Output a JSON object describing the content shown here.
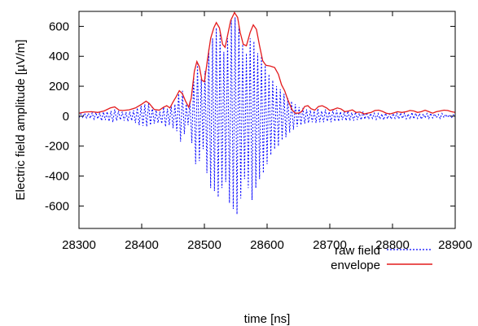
{
  "chart_data": {
    "type": "line",
    "xlabel": "time [ns]",
    "ylabel": "Electric field amplitude [µV/m]",
    "xlim": [
      28300,
      28900
    ],
    "ylim": [
      -750,
      700
    ],
    "x_ticks": [
      28300,
      28400,
      28500,
      28600,
      28700,
      28800,
      28900
    ],
    "y_ticks": [
      -600,
      -400,
      -200,
      0,
      200,
      400,
      600
    ],
    "grid": false,
    "legend_position": "bottom-right",
    "series": [
      {
        "name": "raw field",
        "style": "dotted",
        "color": "#0000ff",
        "points": [
          [
            28300,
            -10
          ],
          [
            28303,
            15
          ],
          [
            28306,
            -8
          ],
          [
            28309,
            20
          ],
          [
            28312,
            -12
          ],
          [
            28315,
            18
          ],
          [
            28318,
            -15
          ],
          [
            28321,
            22
          ],
          [
            28324,
            -20
          ],
          [
            28327,
            25
          ],
          [
            28330,
            -18
          ],
          [
            28333,
            20
          ],
          [
            28336,
            -30
          ],
          [
            28339,
            28
          ],
          [
            28342,
            -25
          ],
          [
            28345,
            30
          ],
          [
            28348,
            -35
          ],
          [
            28351,
            35
          ],
          [
            28354,
            -40
          ],
          [
            28357,
            45
          ],
          [
            28360,
            -30
          ],
          [
            28363,
            35
          ],
          [
            28366,
            -25
          ],
          [
            28369,
            30
          ],
          [
            28372,
            -30
          ],
          [
            28375,
            28
          ],
          [
            28378,
            -35
          ],
          [
            28381,
            30
          ],
          [
            28384,
            -30
          ],
          [
            28387,
            40
          ],
          [
            28390,
            -45
          ],
          [
            28393,
            55
          ],
          [
            28396,
            -60
          ],
          [
            28399,
            70
          ],
          [
            28402,
            -65
          ],
          [
            28405,
            80
          ],
          [
            28408,
            -70
          ],
          [
            28411,
            85
          ],
          [
            28414,
            -60
          ],
          [
            28417,
            60
          ],
          [
            28420,
            -50
          ],
          [
            28423,
            40
          ],
          [
            28426,
            -45
          ],
          [
            28429,
            30
          ],
          [
            28432,
            -50
          ],
          [
            28435,
            60
          ],
          [
            28438,
            -70
          ],
          [
            28441,
            50
          ],
          [
            28444,
            -60
          ],
          [
            28447,
            70
          ],
          [
            28450,
            -80
          ],
          [
            28453,
            80
          ],
          [
            28456,
            -100
          ],
          [
            28459,
            150
          ],
          [
            28462,
            -170
          ],
          [
            28465,
            170
          ],
          [
            28468,
            -120
          ],
          [
            28471,
            80
          ],
          [
            28474,
            -60
          ],
          [
            28477,
            100
          ],
          [
            28480,
            -180
          ],
          [
            28483,
            260
          ],
          [
            28486,
            -320
          ],
          [
            28489,
            350
          ],
          [
            28492,
            -300
          ],
          [
            28495,
            250
          ],
          [
            28498,
            -220
          ],
          [
            28501,
            300
          ],
          [
            28504,
            -380
          ],
          [
            28507,
            450
          ],
          [
            28510,
            -480
          ],
          [
            28513,
            520
          ],
          [
            28516,
            -500
          ],
          [
            28519,
            590
          ],
          [
            28522,
            -540
          ],
          [
            28525,
            560
          ],
          [
            28528,
            -480
          ],
          [
            28531,
            430
          ],
          [
            28534,
            -440
          ],
          [
            28537,
            520
          ],
          [
            28540,
            -580
          ],
          [
            28543,
            640
          ],
          [
            28546,
            -620
          ],
          [
            28549,
            660
          ],
          [
            28552,
            -655
          ],
          [
            28555,
            600
          ],
          [
            28558,
            -550
          ],
          [
            28561,
            480
          ],
          [
            28564,
            -420
          ],
          [
            28567,
            420
          ],
          [
            28570,
            -480
          ],
          [
            28573,
            520
          ],
          [
            28576,
            -560
          ],
          [
            28579,
            500
          ],
          [
            28582,
            -480
          ],
          [
            28585,
            420
          ],
          [
            28588,
            -420
          ],
          [
            28591,
            400
          ],
          [
            28594,
            -380
          ],
          [
            28597,
            350
          ],
          [
            28600,
            -320
          ],
          [
            28603,
            280
          ],
          [
            28606,
            -260
          ],
          [
            28609,
            240
          ],
          [
            28612,
            -220
          ],
          [
            28615,
            200
          ],
          [
            28618,
            -200
          ],
          [
            28621,
            180
          ],
          [
            28624,
            -160
          ],
          [
            28627,
            150
          ],
          [
            28630,
            -140
          ],
          [
            28633,
            120
          ],
          [
            28636,
            -110
          ],
          [
            28639,
            100
          ],
          [
            28642,
            -90
          ],
          [
            28645,
            80
          ],
          [
            28648,
            -70
          ],
          [
            28651,
            60
          ],
          [
            28654,
            -60
          ],
          [
            28657,
            55
          ],
          [
            28660,
            -50
          ],
          [
            28663,
            45
          ],
          [
            28666,
            -45
          ],
          [
            28669,
            40
          ],
          [
            28672,
            -40
          ],
          [
            28675,
            35
          ],
          [
            28678,
            -45
          ],
          [
            28681,
            50
          ],
          [
            28684,
            -40
          ],
          [
            28687,
            35
          ],
          [
            28690,
            -40
          ],
          [
            28693,
            45
          ],
          [
            28696,
            -35
          ],
          [
            28699,
            30
          ],
          [
            28702,
            -40
          ],
          [
            28705,
            45
          ],
          [
            28708,
            -35
          ],
          [
            28711,
            40
          ],
          [
            28714,
            -35
          ],
          [
            28717,
            30
          ],
          [
            28720,
            -25
          ],
          [
            28723,
            30
          ],
          [
            28726,
            -30
          ],
          [
            28729,
            35
          ],
          [
            28732,
            -30
          ],
          [
            28735,
            25
          ],
          [
            28738,
            -30
          ],
          [
            28741,
            28
          ],
          [
            28744,
            -25
          ],
          [
            28747,
            20
          ],
          [
            28750,
            -25
          ],
          [
            28753,
            30
          ],
          [
            28756,
            -20
          ],
          [
            28759,
            25
          ],
          [
            28762,
            -20
          ],
          [
            28765,
            18
          ],
          [
            28768,
            -15
          ],
          [
            28771,
            20
          ],
          [
            28774,
            -22
          ],
          [
            28777,
            18
          ],
          [
            28780,
            -20
          ],
          [
            28783,
            15
          ],
          [
            28786,
            -25
          ],
          [
            28789,
            20
          ],
          [
            28792,
            -18
          ],
          [
            28795,
            15
          ],
          [
            28798,
            -20
          ],
          [
            28801,
            18
          ],
          [
            28804,
            -15
          ],
          [
            28807,
            20
          ],
          [
            28810,
            -18
          ],
          [
            28813,
            22
          ],
          [
            28816,
            -15
          ],
          [
            28819,
            20
          ],
          [
            28822,
            -18
          ],
          [
            28825,
            15
          ],
          [
            28828,
            -20
          ],
          [
            28831,
            25
          ],
          [
            28834,
            -18
          ],
          [
            28837,
            20
          ],
          [
            28840,
            -15
          ],
          [
            28843,
            18
          ],
          [
            28846,
            -20
          ],
          [
            28849,
            15
          ],
          [
            28852,
            -12
          ],
          [
            28855,
            18
          ],
          [
            28858,
            -15
          ],
          [
            28861,
            20
          ],
          [
            28864,
            -12
          ],
          [
            28867,
            15
          ],
          [
            28870,
            -10
          ],
          [
            28873,
            12
          ],
          [
            28876,
            -15
          ],
          [
            28879,
            18
          ],
          [
            28882,
            -10
          ],
          [
            28885,
            12
          ],
          [
            28888,
            -8
          ],
          [
            28891,
            10
          ],
          [
            28894,
            -12
          ],
          [
            28897,
            10
          ],
          [
            28900,
            -5
          ]
        ]
      },
      {
        "name": "envelope",
        "style": "solid",
        "color": "#e31a1c",
        "points": [
          [
            28300,
            20
          ],
          [
            28310,
            28
          ],
          [
            28320,
            30
          ],
          [
            28330,
            25
          ],
          [
            28340,
            35
          ],
          [
            28350,
            55
          ],
          [
            28357,
            62
          ],
          [
            28364,
            40
          ],
          [
            28370,
            38
          ],
          [
            28380,
            42
          ],
          [
            28390,
            55
          ],
          [
            28400,
            80
          ],
          [
            28407,
            100
          ],
          [
            28412,
            85
          ],
          [
            28420,
            45
          ],
          [
            28428,
            40
          ],
          [
            28435,
            60
          ],
          [
            28440,
            70
          ],
          [
            28445,
            55
          ],
          [
            28450,
            95
          ],
          [
            28455,
            130
          ],
          [
            28460,
            170
          ],
          [
            28465,
            150
          ],
          [
            28470,
            100
          ],
          [
            28475,
            60
          ],
          [
            28479,
            120
          ],
          [
            28484,
            300
          ],
          [
            28488,
            365
          ],
          [
            28492,
            330
          ],
          [
            28496,
            240
          ],
          [
            28500,
            230
          ],
          [
            28505,
            380
          ],
          [
            28510,
            520
          ],
          [
            28515,
            590
          ],
          [
            28519,
            625
          ],
          [
            28524,
            590
          ],
          [
            28529,
            480
          ],
          [
            28533,
            460
          ],
          [
            28537,
            540
          ],
          [
            28542,
            640
          ],
          [
            28548,
            692
          ],
          [
            28553,
            660
          ],
          [
            28557,
            560
          ],
          [
            28562,
            480
          ],
          [
            28567,
            470
          ],
          [
            28573,
            560
          ],
          [
            28578,
            610
          ],
          [
            28583,
            580
          ],
          [
            28588,
            470
          ],
          [
            28593,
            370
          ],
          [
            28598,
            340
          ],
          [
            28605,
            335
          ],
          [
            28612,
            325
          ],
          [
            28618,
            280
          ],
          [
            28623,
            210
          ],
          [
            28628,
            170
          ],
          [
            28633,
            110
          ],
          [
            28640,
            40
          ],
          [
            28645,
            20
          ],
          [
            28650,
            20
          ],
          [
            28655,
            30
          ],
          [
            28660,
            65
          ],
          [
            28665,
            70
          ],
          [
            28670,
            50
          ],
          [
            28676,
            40
          ],
          [
            28682,
            65
          ],
          [
            28688,
            70
          ],
          [
            28695,
            55
          ],
          [
            28700,
            38
          ],
          [
            28706,
            45
          ],
          [
            28712,
            55
          ],
          [
            28718,
            48
          ],
          [
            28724,
            30
          ],
          [
            28730,
            35
          ],
          [
            28736,
            42
          ],
          [
            28742,
            25
          ],
          [
            28748,
            28
          ],
          [
            28755,
            15
          ],
          [
            28760,
            20
          ],
          [
            28766,
            25
          ],
          [
            28772,
            38
          ],
          [
            28778,
            40
          ],
          [
            28784,
            32
          ],
          [
            28790,
            20
          ],
          [
            28796,
            15
          ],
          [
            28802,
            22
          ],
          [
            28808,
            30
          ],
          [
            28815,
            25
          ],
          [
            28822,
            30
          ],
          [
            28828,
            38
          ],
          [
            28834,
            35
          ],
          [
            28840,
            25
          ],
          [
            28846,
            30
          ],
          [
            28852,
            40
          ],
          [
            28858,
            30
          ],
          [
            28864,
            20
          ],
          [
            28870,
            30
          ],
          [
            28876,
            35
          ],
          [
            28882,
            40
          ],
          [
            28888,
            38
          ],
          [
            28894,
            30
          ],
          [
            28900,
            25
          ]
        ]
      }
    ]
  }
}
